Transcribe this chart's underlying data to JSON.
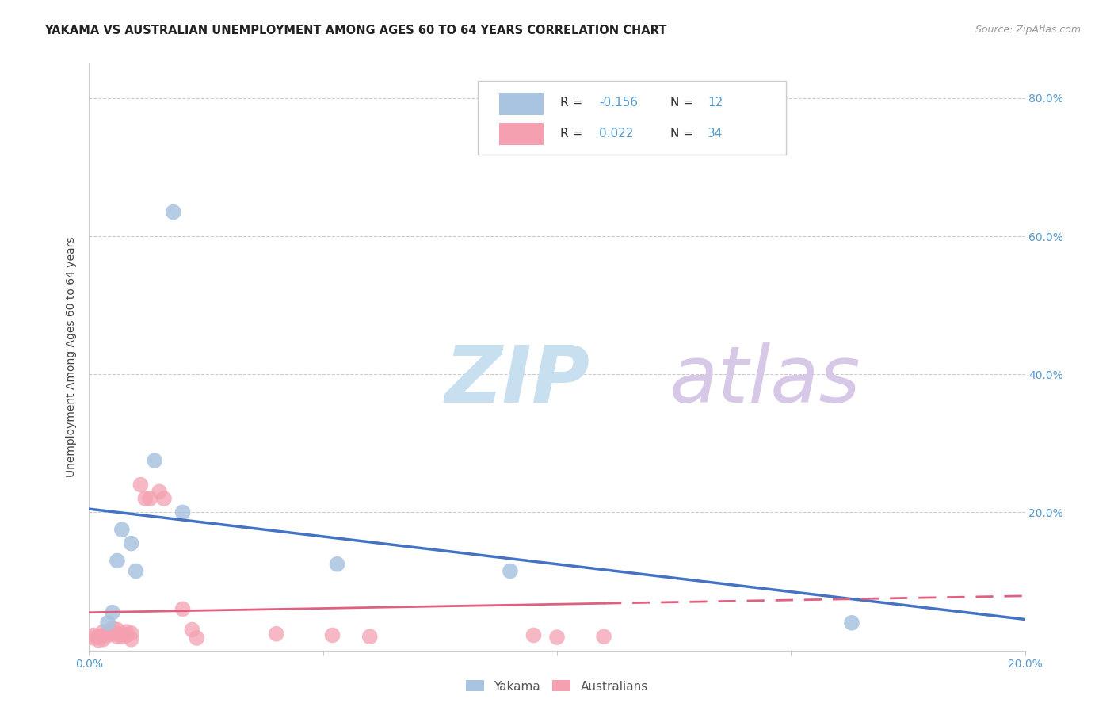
{
  "title": "YAKAMA VS AUSTRALIAN UNEMPLOYMENT AMONG AGES 60 TO 64 YEARS CORRELATION CHART",
  "source": "Source: ZipAtlas.com",
  "ylabel_label": "Unemployment Among Ages 60 to 64 years",
  "xlim": [
    0.0,
    0.2
  ],
  "ylim": [
    0.0,
    0.85
  ],
  "x_ticks": [
    0.0,
    0.05,
    0.1,
    0.15,
    0.2
  ],
  "x_tick_labels": [
    "0.0%",
    "",
    "",
    "",
    "20.0%"
  ],
  "y_ticks": [
    0.0,
    0.2,
    0.4,
    0.6,
    0.8
  ],
  "y_right_tick_labels": [
    "",
    "20.0%",
    "40.0%",
    "60.0%",
    "80.0%"
  ],
  "yakama_x": [
    0.004,
    0.005,
    0.006,
    0.007,
    0.009,
    0.01,
    0.014,
    0.018,
    0.02,
    0.053,
    0.09,
    0.163
  ],
  "yakama_y": [
    0.04,
    0.055,
    0.13,
    0.175,
    0.155,
    0.115,
    0.275,
    0.635,
    0.2,
    0.125,
    0.115,
    0.04
  ],
  "australians_x": [
    0.001,
    0.001,
    0.002,
    0.002,
    0.003,
    0.003,
    0.003,
    0.004,
    0.004,
    0.005,
    0.005,
    0.005,
    0.006,
    0.006,
    0.007,
    0.007,
    0.008,
    0.008,
    0.009,
    0.009,
    0.011,
    0.012,
    0.013,
    0.015,
    0.016,
    0.02,
    0.022,
    0.023,
    0.04,
    0.052,
    0.06,
    0.095,
    0.1,
    0.11
  ],
  "australians_y": [
    0.018,
    0.022,
    0.015,
    0.02,
    0.016,
    0.022,
    0.027,
    0.025,
    0.022,
    0.024,
    0.027,
    0.032,
    0.02,
    0.03,
    0.02,
    0.024,
    0.022,
    0.027,
    0.016,
    0.025,
    0.24,
    0.22,
    0.22,
    0.23,
    0.22,
    0.06,
    0.03,
    0.018,
    0.024,
    0.022,
    0.02,
    0.022,
    0.019,
    0.02
  ],
  "yakama_color": "#a8c4e0",
  "australians_color": "#f4a0b0",
  "yakama_line_color": "#4472c4",
  "australians_line_color": "#e06080",
  "R_yakama": -0.156,
  "N_yakama": 12,
  "R_australians": 0.022,
  "N_australians": 34,
  "watermark_zip": "ZIP",
  "watermark_atlas": "atlas",
  "watermark_color_zip": "#c8dff0",
  "watermark_color_atlas": "#d8c8e8",
  "background_color": "#ffffff",
  "title_fontsize": 10.5,
  "axis_label_fontsize": 10,
  "tick_fontsize": 10,
  "legend_fontsize": 11,
  "source_fontsize": 9,
  "yakama_line_intercept": 0.205,
  "yakama_line_slope": -0.8,
  "australians_line_intercept": 0.055,
  "australians_line_slope": 0.12
}
